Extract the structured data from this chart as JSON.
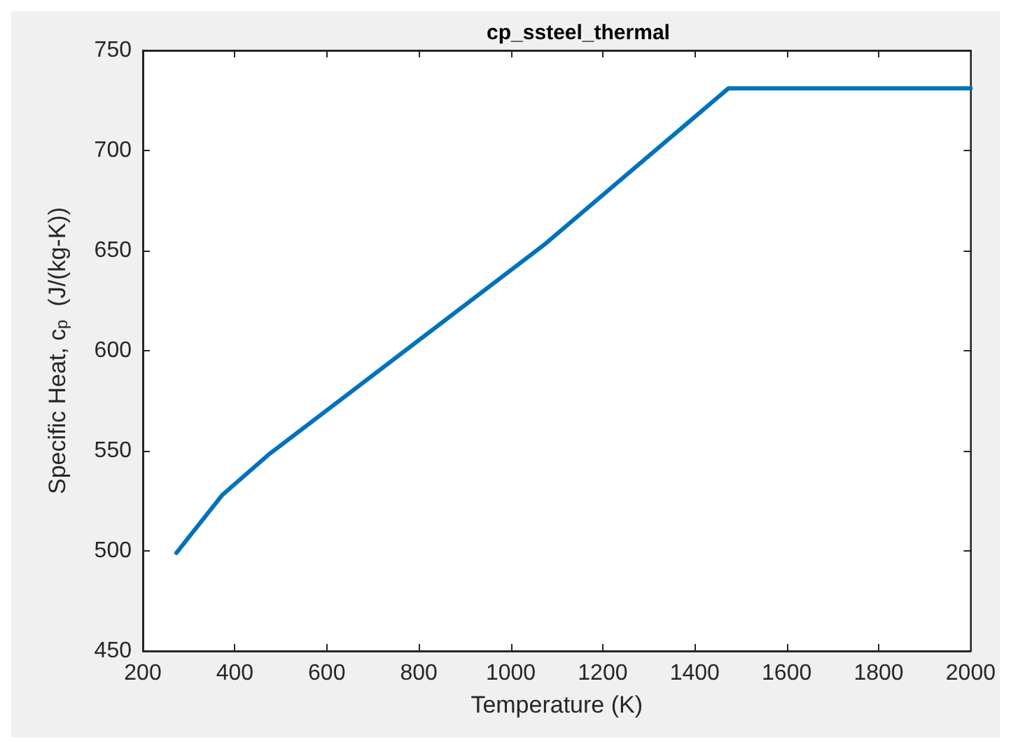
{
  "chart_data": {
    "type": "line",
    "title": "cp_ssteel_thermal",
    "xlabel": "Temperature (K)",
    "ylabel": "Specific Heat, c$_{p}$  (J/(kg-K))",
    "x": [
      273,
      373,
      473,
      1073,
      1473,
      2000
    ],
    "series": [
      {
        "color": "#0072bd",
        "values": [
          499,
          528,
          548,
          653,
          731,
          731
        ]
      }
    ],
    "xlim": [
      200,
      2000
    ],
    "xticks": [
      200,
      400,
      600,
      800,
      1000,
      1200,
      1400,
      1600,
      1800,
      2000
    ],
    "ylim": [
      450,
      750
    ],
    "yticks": [
      450,
      500,
      550,
      600,
      650,
      700,
      750
    ],
    "grid": false,
    "marker": "none",
    "line_style": "solid"
  }
}
